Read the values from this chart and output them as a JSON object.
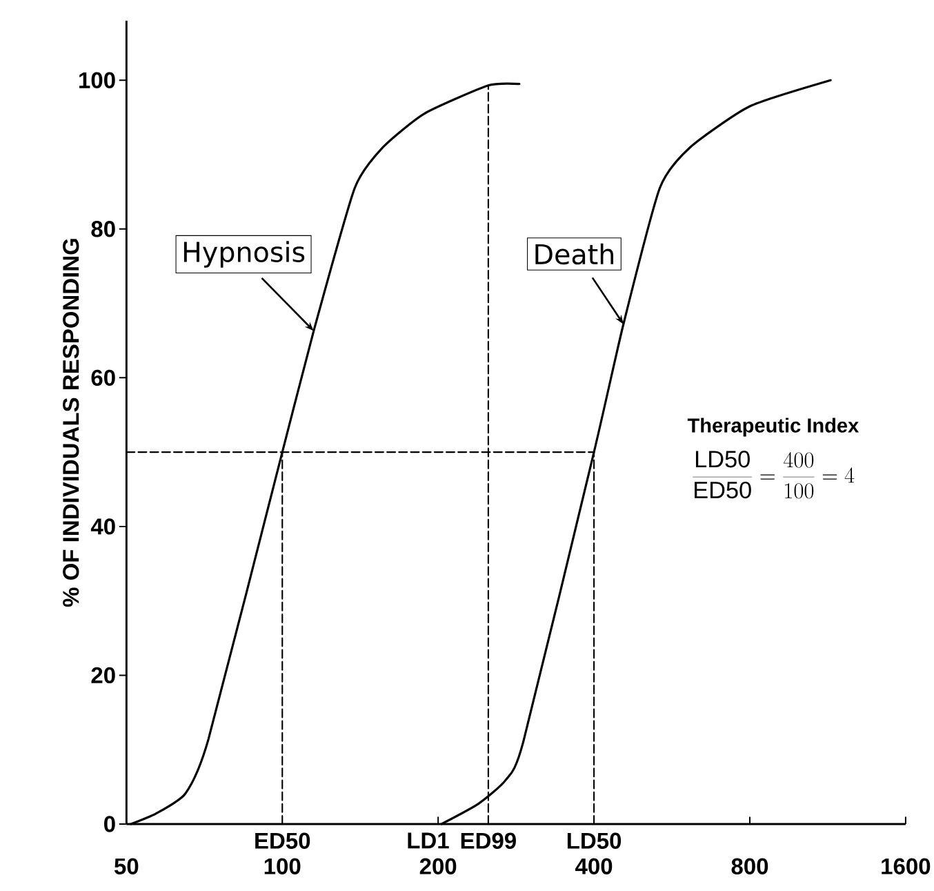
{
  "chart_data": {
    "type": "line",
    "ylabel": "% OF INDIVIDUALS RESPONDING",
    "log": "x",
    "xlim": [
      50,
      1600
    ],
    "ylim": [
      0,
      108
    ],
    "xticks": [
      50,
      100,
      200,
      400,
      800,
      1600
    ],
    "yticks": [
      0,
      20,
      40,
      60,
      80,
      100
    ],
    "marker": "none",
    "series": [
      {
        "name": "Hypnosis",
        "color": "#000000",
        "line_style": "solid",
        "x": [
          51,
          57,
          65,
          72,
          100,
          115,
          138,
          156,
          188,
          250,
          287
        ],
        "values": [
          0,
          1.4,
          4.1,
          11.4,
          50,
          66.3,
          85.5,
          90.9,
          95.5,
          99.3,
          99.5
        ]
      },
      {
        "name": "Death",
        "color": "#000000",
        "line_style": "solid",
        "x": [
          203,
          239,
          270,
          292,
          400,
          456,
          536,
          614,
          800,
          1146
        ],
        "values": [
          0,
          2.7,
          5.9,
          11,
          50,
          67.2,
          85.5,
          91,
          96.5,
          100
        ]
      },
      {
        "color": "#000000",
        "line_style": "dashed",
        "x": [
          50,
          400
        ],
        "values": [
          50,
          50
        ]
      },
      {
        "color": "#000000",
        "line_style": "dashed",
        "x": [
          100,
          100
        ],
        "values": [
          0,
          50
        ]
      },
      {
        "color": "#000000",
        "line_style": "dashed",
        "x": [
          250,
          250
        ],
        "values": [
          0,
          99.3
        ]
      },
      {
        "color": "#000000",
        "line_style": "dashed",
        "x": [
          400,
          400
        ],
        "values": [
          0,
          50
        ]
      }
    ],
    "annotations": [
      {
        "text": "ED50",
        "x": 100,
        "y": 0
      },
      "LD1",
      {
        "text": "ED99",
        "x": 250,
        "y": 0
      },
      {
        "text": "LD50",
        "x": 400,
        "y": 0
      },
      "Therapeutic Index",
      "\\frac{\\mathrm{LD50}}{\\mathrm{ED50}} = \\frac{400}{100} = 4"
    ]
  }
}
